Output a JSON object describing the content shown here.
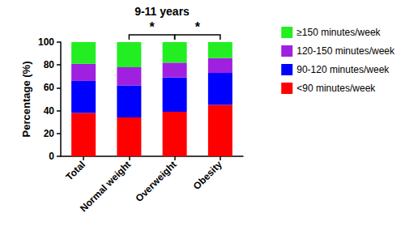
{
  "chart_data": {
    "type": "bar",
    "title": "9-11 years",
    "y_label": "Percentage (%)",
    "categories": [
      "Total",
      "Normal weight",
      "Overweight",
      "Obesity"
    ],
    "series": [
      {
        "name": "<90 minutes/week",
        "color": "#ff0000",
        "values": [
          38,
          34,
          39,
          45
        ]
      },
      {
        "name": "90-120 minutes/week",
        "color": "#0000ff",
        "values": [
          28,
          28,
          30,
          28
        ]
      },
      {
        "name": "120-150 minutes/week",
        "color": "#a020e0",
        "values": [
          15,
          16,
          13,
          13
        ]
      },
      {
        "name": "≥150 minutes/week",
        "color": "#22ee22",
        "values": [
          19,
          22,
          18,
          14
        ]
      }
    ],
    "ylim": [
      0,
      100
    ],
    "yticks": [
      0,
      20,
      40,
      60,
      80,
      100
    ],
    "stacked": true,
    "grid": false,
    "legend": "right",
    "annotations": [
      {
        "text": "*",
        "from": "Normal weight",
        "to": "Overweight"
      },
      {
        "text": "*",
        "from": "Overweight",
        "to": "Obesity"
      }
    ]
  }
}
